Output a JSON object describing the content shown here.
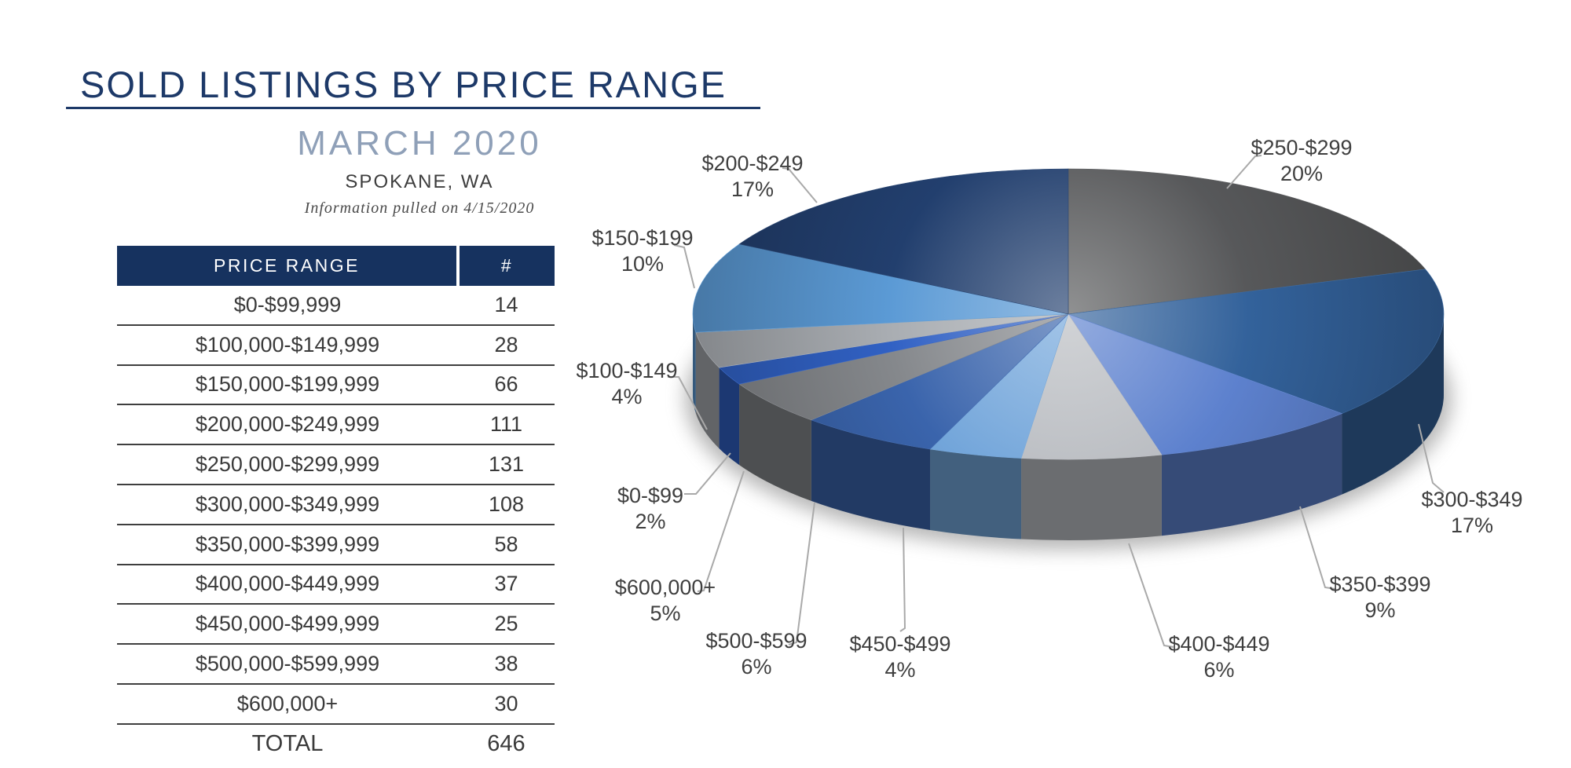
{
  "page": {
    "title": "SOLD LISTINGS BY PRICE RANGE",
    "subtitle": "MARCH 2020",
    "location": "SPOKANE, WA",
    "note": "Information pulled on 4/15/2020"
  },
  "colors": {
    "navy": "#1d3968",
    "header_navy": "#16325f",
    "subtitle_gray_blue": "#8fa0b8",
    "body_text": "#3a3a3a",
    "pie_label_text": "#3f3f3f",
    "leader_line": "#a9a9a9",
    "row_rule": "#3f3f3f"
  },
  "table": {
    "headers": [
      "PRICE RANGE",
      "#"
    ],
    "rows": [
      {
        "range": "$0-$99,999",
        "count": "14"
      },
      {
        "range": "$100,000-$149,999",
        "count": "28"
      },
      {
        "range": "$150,000-$199,999",
        "count": "66"
      },
      {
        "range": "$200,000-$249,999",
        "count": "111"
      },
      {
        "range": "$250,000-$299,999",
        "count": "131"
      },
      {
        "range": "$300,000-$349,999",
        "count": "108"
      },
      {
        "range": "$350,000-$399,999",
        "count": "58"
      },
      {
        "range": "$400,000-$449,999",
        "count": "37"
      },
      {
        "range": "$450,000-$499,999",
        "count": "25"
      },
      {
        "range": "$500,000-$599,999",
        "count": "38"
      },
      {
        "range": "$600,000+",
        "count": "30"
      }
    ],
    "total": {
      "label": "TOTAL",
      "value": "646"
    }
  },
  "chart_data": {
    "type": "pie",
    "style": "3d",
    "title": "Sold Listings by Price Range - March 2020 - Spokane, WA (share of 646 total)",
    "direction": "clockwise",
    "start_angle_deg": 0,
    "legend": "none",
    "slices": [
      {
        "label": "$250-$299",
        "pct": 20,
        "color": "#57585a"
      },
      {
        "label": "$300-$349",
        "pct": 17,
        "color": "#33629b"
      },
      {
        "label": "$350-$399",
        "pct": 9,
        "color": "#5d81ce"
      },
      {
        "label": "$400-$449",
        "pct": 6,
        "color": "#b9bcc1"
      },
      {
        "label": "$450-$499",
        "pct": 4,
        "color": "#72a5da"
      },
      {
        "label": "$500-$599",
        "pct": 6,
        "color": "#3a64ac"
      },
      {
        "label": "$600,000+",
        "pct": 5,
        "color": "#85888c"
      },
      {
        "label": "$0-$99",
        "pct": 2,
        "color": "#3161c4"
      },
      {
        "label": "$100-$149",
        "pct": 4,
        "color": "#a9adb2"
      },
      {
        "label": "$150-$199",
        "pct": 10,
        "color": "#5b9ad5"
      },
      {
        "label": "$200-$249",
        "pct": 17,
        "color": "#223f6e"
      }
    ]
  }
}
